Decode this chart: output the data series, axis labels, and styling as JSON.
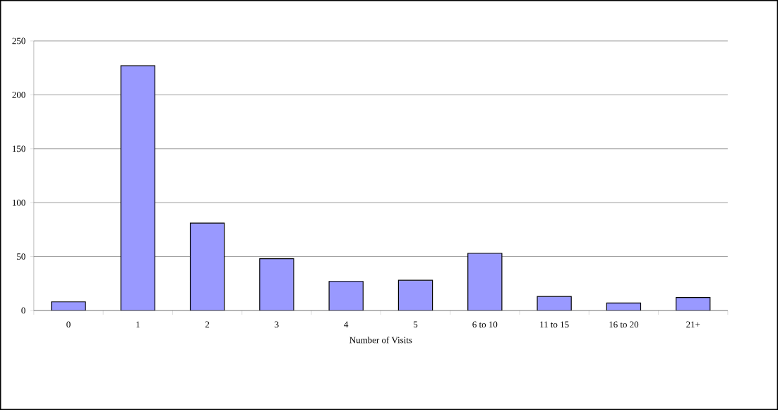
{
  "chart_data": {
    "type": "bar",
    "xlabel": "Number of Visits",
    "categories": [
      "0",
      "1",
      "2",
      "3",
      "4",
      "5",
      "6 to 10",
      "11 to 15",
      "16 to 20",
      "21+"
    ],
    "values": [
      8,
      227,
      81,
      48,
      27,
      28,
      53,
      13,
      7,
      12
    ],
    "color": "#9999ff",
    "ylim": [
      0,
      250
    ],
    "yticks": [
      0,
      50,
      100,
      150,
      200,
      250
    ],
    "grid": "y"
  }
}
